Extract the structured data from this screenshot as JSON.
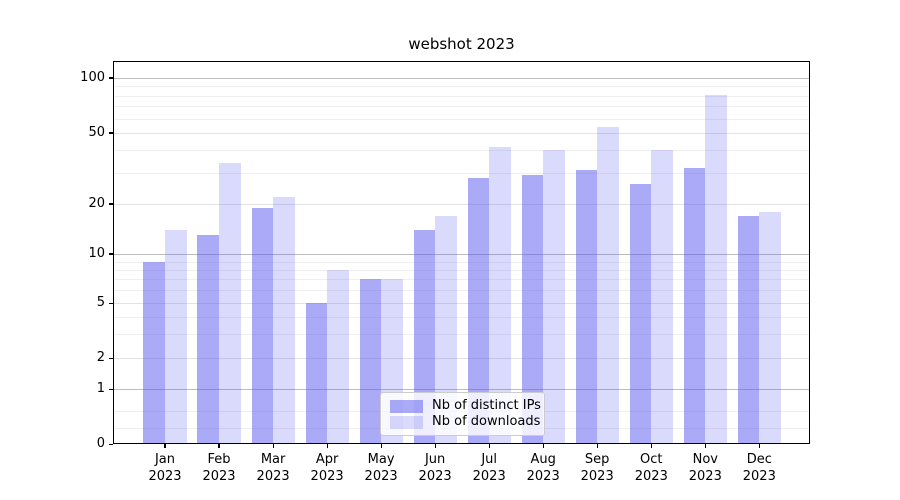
{
  "chart_data": {
    "type": "bar",
    "title": "webshot 2023",
    "categories": [
      "Jan 2023",
      "Feb 2023",
      "Mar 2023",
      "Apr 2023",
      "May 2023",
      "Jun 2023",
      "Jul 2023",
      "Aug 2023",
      "Sep 2023",
      "Oct 2023",
      "Nov 2023",
      "Dec 2023"
    ],
    "series": [
      {
        "name": "Nb of distinct IPs",
        "color": "#5555f0",
        "alpha": 0.5,
        "values": [
          9,
          13,
          19,
          5,
          7,
          14,
          28,
          29,
          31,
          26,
          32,
          17
        ]
      },
      {
        "name": "Nb of downloads",
        "color": "#5555f0",
        "alpha": 0.22,
        "values": [
          14,
          34,
          22,
          8,
          7,
          17,
          42,
          40,
          54,
          40,
          81,
          18
        ]
      }
    ],
    "y_axis": {
      "scale": "symlog",
      "ticks": [
        0,
        1,
        2,
        5,
        10,
        20,
        50,
        100
      ],
      "minor_ticks": [
        0.3,
        0.6,
        3,
        4,
        6,
        7,
        8,
        9,
        30,
        40,
        60,
        70,
        80,
        90
      ],
      "decade_ticks": [
        1,
        10,
        100
      ]
    },
    "grid": true,
    "legend_position": "lower center"
  }
}
